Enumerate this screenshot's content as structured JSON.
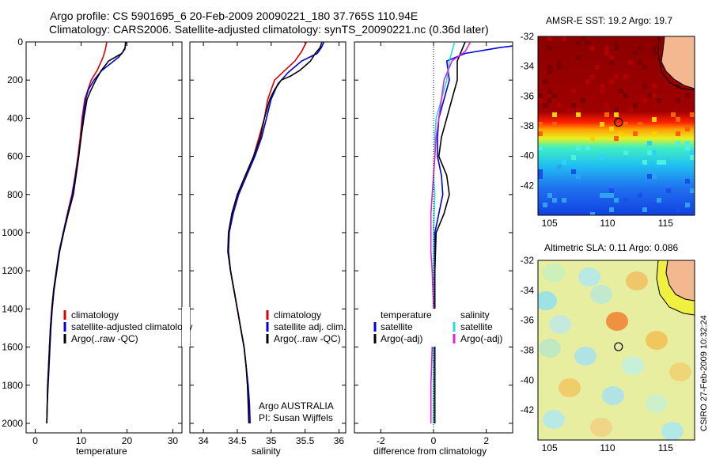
{
  "header": {
    "title_line1": "Argo profile: CS 5901695_6 20-Feb-2009 20090221_180 37.765S 110.94E",
    "title_line2": "Climatology: CARS2006. Satellite-adjusted climatology: synTS_20090221.nc (0.36d later)"
  },
  "credits": {
    "argo_line1": "Argo AUSTRALIA",
    "argo_line2": "PI: Susan Wijffels",
    "side": "CSIRO 27-Feb-2009 10:32:24"
  },
  "colors": {
    "climatology": "#dd0000",
    "satellite": "#0000dd",
    "argo": "#000000",
    "sal_satellite": "#22dddd",
    "sal_argo": "#dd22dd"
  },
  "chart_data": [
    {
      "type": "line",
      "panel": "temperature",
      "xlabel": "temperature",
      "xlim": [
        -2,
        32
      ],
      "xticks": [
        0,
        10,
        20,
        30
      ],
      "ylim": [
        0,
        2050
      ],
      "yticks": [
        0,
        200,
        400,
        600,
        800,
        1000,
        1200,
        1400,
        1600,
        1800,
        2000
      ],
      "y_reversed": true,
      "legend": [
        "climatology",
        "satellite-adjusted climatology",
        "Argo(..raw -QC)"
      ],
      "series": [
        {
          "name": "climatology",
          "color_key": "climatology",
          "points": [
            [
              15.6,
              0
            ],
            [
              15.3,
              40
            ],
            [
              14.8,
              80
            ],
            [
              13.5,
              150
            ],
            [
              12.2,
              200
            ],
            [
              11.5,
              250
            ],
            [
              10.8,
              300
            ],
            [
              10.2,
              400
            ],
            [
              9.8,
              500
            ],
            [
              9.3,
              600
            ],
            [
              8.7,
              700
            ],
            [
              8.0,
              800
            ],
            [
              7.0,
              900
            ],
            [
              6.1,
              1000
            ],
            [
              5.2,
              1100
            ],
            [
              4.6,
              1200
            ],
            [
              4.0,
              1300
            ],
            [
              3.6,
              1400
            ],
            [
              3.3,
              1500
            ],
            [
              3.1,
              1600
            ],
            [
              2.9,
              1700
            ],
            [
              2.7,
              1800
            ],
            [
              2.6,
              1900
            ],
            [
              2.5,
              2000
            ]
          ]
        },
        {
          "name": "satellite-adjusted climatology",
          "color_key": "satellite",
          "points": [
            [
              19.8,
              0
            ],
            [
              19.5,
              40
            ],
            [
              18.2,
              80
            ],
            [
              14.5,
              150
            ],
            [
              12.8,
              200
            ],
            [
              11.6,
              250
            ],
            [
              11.0,
              300
            ],
            [
              10.4,
              400
            ],
            [
              10.0,
              500
            ],
            [
              9.4,
              600
            ],
            [
              8.8,
              700
            ],
            [
              8.1,
              800
            ],
            [
              7.1,
              900
            ],
            [
              6.1,
              1000
            ],
            [
              5.2,
              1100
            ],
            [
              4.6,
              1200
            ],
            [
              4.0,
              1300
            ],
            [
              3.6,
              1400
            ],
            [
              3.3,
              1500
            ],
            [
              3.1,
              1600
            ],
            [
              2.9,
              1700
            ],
            [
              2.7,
              1800
            ],
            [
              2.6,
              1900
            ],
            [
              2.5,
              2000
            ]
          ]
        },
        {
          "name": "Argo(..raw -QC)",
          "color_key": "argo",
          "points": [
            [
              19.7,
              0
            ],
            [
              19.6,
              30
            ],
            [
              18.9,
              60
            ],
            [
              16.0,
              100
            ],
            [
              14.4,
              150
            ],
            [
              13.2,
              200
            ],
            [
              12.0,
              260
            ],
            [
              11.3,
              300
            ],
            [
              10.6,
              400
            ],
            [
              10.0,
              500
            ],
            [
              9.5,
              600
            ],
            [
              8.9,
              700
            ],
            [
              8.3,
              800
            ],
            [
              7.2,
              900
            ],
            [
              6.2,
              1000
            ],
            [
              5.3,
              1100
            ],
            [
              4.7,
              1200
            ],
            [
              4.1,
              1300
            ],
            [
              3.7,
              1400
            ],
            [
              3.4,
              1500
            ],
            [
              3.2,
              1600
            ],
            [
              3.0,
              1700
            ],
            [
              2.8,
              1800
            ],
            [
              2.6,
              1900
            ],
            [
              2.5,
              2000
            ]
          ]
        }
      ]
    },
    {
      "type": "line",
      "panel": "salinity",
      "xlabel": "salinity",
      "xlim": [
        33.8,
        36.1
      ],
      "xticks": [
        34,
        34.5,
        35,
        35.5,
        36
      ],
      "ylim": [
        0,
        2050
      ],
      "yticks": [
        0,
        200,
        400,
        600,
        800,
        1000,
        1200,
        1400,
        1600,
        1800,
        2000
      ],
      "y_reversed": true,
      "legend": [
        "climatology",
        "satellite adj. clim.",
        "Argo(..raw -QC)"
      ],
      "series": [
        {
          "name": "climatology",
          "color_key": "climatology",
          "points": [
            [
              35.52,
              0
            ],
            [
              35.45,
              50
            ],
            [
              35.35,
              100
            ],
            [
              35.2,
              150
            ],
            [
              35.05,
              200
            ],
            [
              34.95,
              300
            ],
            [
              34.9,
              400
            ],
            [
              34.82,
              500
            ],
            [
              34.74,
              600
            ],
            [
              34.62,
              700
            ],
            [
              34.5,
              800
            ],
            [
              34.42,
              900
            ],
            [
              34.38,
              1000
            ],
            [
              34.37,
              1100
            ],
            [
              34.4,
              1200
            ],
            [
              34.45,
              1300
            ],
            [
              34.5,
              1400
            ],
            [
              34.55,
              1500
            ],
            [
              34.6,
              1600
            ],
            [
              34.63,
              1700
            ],
            [
              34.65,
              1800
            ],
            [
              34.67,
              1900
            ],
            [
              34.68,
              2000
            ]
          ]
        },
        {
          "name": "satellite adj. clim.",
          "color_key": "satellite",
          "points": [
            [
              35.78,
              0
            ],
            [
              35.74,
              30
            ],
            [
              35.68,
              60
            ],
            [
              35.45,
              100
            ],
            [
              35.25,
              160
            ],
            [
              35.1,
              220
            ],
            [
              35.0,
              300
            ],
            [
              34.93,
              400
            ],
            [
              34.86,
              500
            ],
            [
              34.76,
              600
            ],
            [
              34.64,
              700
            ],
            [
              34.52,
              800
            ],
            [
              34.44,
              900
            ],
            [
              34.38,
              1000
            ],
            [
              34.37,
              1100
            ],
            [
              34.4,
              1200
            ],
            [
              34.45,
              1300
            ],
            [
              34.5,
              1400
            ],
            [
              34.55,
              1500
            ],
            [
              34.6,
              1600
            ],
            [
              34.63,
              1700
            ],
            [
              34.66,
              1800
            ],
            [
              34.68,
              1900
            ],
            [
              34.69,
              2000
            ]
          ]
        },
        {
          "name": "Argo(..raw -QC)",
          "color_key": "argo",
          "points": [
            [
              35.75,
              0
            ],
            [
              35.72,
              30
            ],
            [
              35.65,
              60
            ],
            [
              35.58,
              100
            ],
            [
              35.42,
              150
            ],
            [
              35.28,
              180
            ],
            [
              35.15,
              200
            ],
            [
              35.05,
              250
            ],
            [
              34.98,
              300
            ],
            [
              34.9,
              400
            ],
            [
              34.84,
              500
            ],
            [
              34.74,
              600
            ],
            [
              34.62,
              700
            ],
            [
              34.5,
              800
            ],
            [
              34.42,
              900
            ],
            [
              34.37,
              1000
            ],
            [
              34.36,
              1100
            ],
            [
              34.4,
              1200
            ],
            [
              34.45,
              1300
            ],
            [
              34.5,
              1400
            ],
            [
              34.55,
              1500
            ],
            [
              34.6,
              1600
            ],
            [
              34.63,
              1700
            ],
            [
              34.65,
              1800
            ],
            [
              34.66,
              1900
            ],
            [
              34.67,
              2000
            ]
          ]
        }
      ]
    },
    {
      "type": "line",
      "panel": "difference",
      "xlabel": "difference from climatology",
      "xlim": [
        -3,
        3
      ],
      "xticks": [
        -2,
        0,
        2
      ],
      "ylim": [
        0,
        2050
      ],
      "y_reversed": true,
      "legend_left_title": "temperature",
      "legend_right_title": "salinity",
      "legend_left": [
        "satellite",
        "Argo(-adj)"
      ],
      "legend_right": [
        "satellite",
        "Argo(-adj)"
      ],
      "series": [
        {
          "name": "temperature satellite",
          "color_key": "satellite",
          "points": [
            [
              4.2,
              0
            ],
            [
              2.5,
              30
            ],
            [
              1.2,
              60
            ],
            [
              0.5,
              100
            ],
            [
              0.6,
              200
            ],
            [
              0.4,
              300
            ],
            [
              0.2,
              400
            ],
            [
              0.15,
              500
            ],
            [
              0.15,
              600
            ],
            [
              0.3,
              700
            ],
            [
              0.35,
              800
            ],
            [
              0.2,
              900
            ],
            [
              0.05,
              1000
            ],
            [
              0.05,
              1200
            ],
            [
              0.0,
              1400
            ],
            [
              0.0,
              1600
            ],
            [
              0.0,
              1800
            ],
            [
              0.0,
              2000
            ]
          ]
        },
        {
          "name": "temperature Argo(-adj)",
          "color_key": "argo",
          "points": [
            [
              1.2,
              0
            ],
            [
              0.9,
              100
            ],
            [
              0.9,
              200
            ],
            [
              0.7,
              300
            ],
            [
              0.5,
              400
            ],
            [
              0.3,
              500
            ],
            [
              0.2,
              600
            ],
            [
              0.5,
              700
            ],
            [
              0.6,
              800
            ],
            [
              0.4,
              900
            ],
            [
              0.1,
              1000
            ],
            [
              0.05,
              1200
            ],
            [
              0.05,
              1400
            ],
            [
              0.05,
              1600
            ],
            [
              0.05,
              1800
            ],
            [
              0.05,
              2000
            ]
          ]
        },
        {
          "name": "salinity satellite",
          "color_key": "sal_satellite",
          "points": [
            [
              0.8,
              0
            ],
            [
              0.7,
              50
            ],
            [
              0.6,
              100
            ],
            [
              0.5,
              200
            ],
            [
              0.3,
              300
            ],
            [
              0.1,
              400
            ],
            [
              0.05,
              500
            ],
            [
              0.05,
              600
            ],
            [
              0.0,
              700
            ],
            [
              0.05,
              800
            ],
            [
              0.0,
              1000
            ],
            [
              0.0,
              1200
            ],
            [
              0.0,
              1400
            ],
            [
              0.0,
              1600
            ],
            [
              0.0,
              1800
            ],
            [
              0.0,
              2000
            ]
          ]
        },
        {
          "name": "salinity Argo(-adj)",
          "color_key": "sal_argo",
          "points": [
            [
              1.4,
              0
            ],
            [
              1.2,
              50
            ],
            [
              0.7,
              100
            ],
            [
              0.4,
              200
            ],
            [
              0.3,
              300
            ],
            [
              0.2,
              400
            ],
            [
              0.1,
              500
            ],
            [
              0.05,
              600
            ],
            [
              0.0,
              700
            ],
            [
              -0.05,
              800
            ],
            [
              -0.1,
              900
            ],
            [
              -0.1,
              1000
            ],
            [
              -0.1,
              1100
            ],
            [
              -0.05,
              1200
            ],
            [
              0.0,
              1400
            ],
            [
              -0.05,
              1600
            ],
            [
              -0.1,
              1800
            ],
            [
              -0.1,
              2000
            ]
          ]
        }
      ]
    },
    {
      "type": "heatmap",
      "panel": "sst_map",
      "title": "AMSR-E SST: 19.2 Argo: 19.7",
      "xlim": [
        104,
        117.5
      ],
      "xticks": [
        105,
        110,
        115
      ],
      "ylim": [
        -44,
        -32
      ],
      "yticks": [
        -42,
        -40,
        -38,
        -36,
        -34,
        -32
      ],
      "profile_location": [
        110.94,
        -37.765
      ]
    },
    {
      "type": "heatmap",
      "panel": "sla_map",
      "title": "Altimetric SLA: 0.11 Argo: 0.086",
      "xlim": [
        104,
        117.5
      ],
      "xticks": [
        105,
        110,
        115
      ],
      "ylim": [
        -44,
        -32
      ],
      "yticks": [
        -42,
        -40,
        -38,
        -36,
        -34,
        -32
      ],
      "profile_location": [
        110.94,
        -37.765
      ]
    }
  ]
}
